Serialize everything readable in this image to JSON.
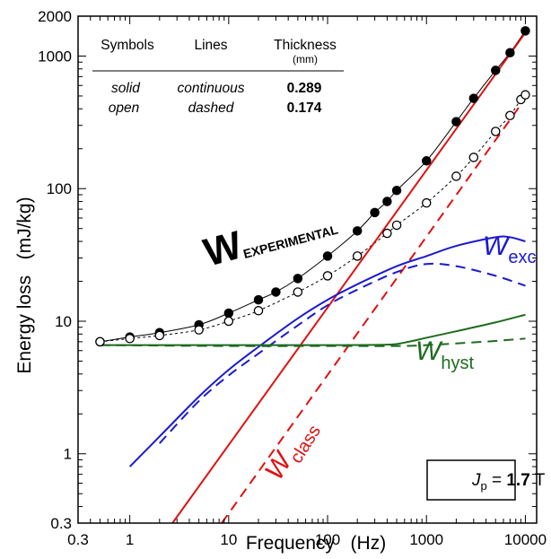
{
  "chart_data": {
    "type": "line",
    "xlabel": "Frequency   (Hz)",
    "ylabel": "Energy loss   (mJ/kg)",
    "xscale": "log",
    "yscale": "log",
    "xlim": [
      0.3,
      13000
    ],
    "ylim": [
      0.3,
      2000
    ],
    "xticks": [
      {
        "v": 0.3,
        "label": "0.3"
      },
      {
        "v": 1,
        "label": "1"
      },
      {
        "v": 10,
        "label": "10"
      },
      {
        "v": 100,
        "label": "100"
      },
      {
        "v": 1000,
        "label": "1000"
      },
      {
        "v": 10000,
        "label": "10000"
      }
    ],
    "yticks": [
      {
        "v": 0.3,
        "label": "0.3"
      },
      {
        "v": 1,
        "label": "1"
      },
      {
        "v": 10,
        "label": "10"
      },
      {
        "v": 100,
        "label": "100"
      },
      {
        "v": 1000,
        "label": "1000"
      },
      {
        "v": 2000,
        "label": "2000"
      }
    ],
    "grid": false,
    "table": {
      "headers": [
        "Symbols",
        "Lines",
        "Thickness"
      ],
      "unit": "(mm)",
      "rows": [
        {
          "symbols": "solid",
          "lines": "continuous",
          "thickness": "0.289"
        },
        {
          "symbols": "open",
          "lines": "dashed",
          "thickness": "0.174"
        }
      ]
    },
    "annotations": {
      "w_exp": {
        "main": "W",
        "sub": "EXPERIMENTAL"
      },
      "w_exc": {
        "main": "W",
        "sub": "exc"
      },
      "w_hyst": {
        "main": "W",
        "sub": "hyst"
      },
      "w_class": {
        "main": "W",
        "sub": "class"
      },
      "jp": {
        "sym": "J",
        "sub": "p",
        "eq": " = ",
        "val": "1.7",
        "unit": " T"
      }
    },
    "colors": {
      "exp": "#000000",
      "exc": "#1a1ad0",
      "hyst": "#1e6b1e",
      "class": "#e01010"
    },
    "series": [
      {
        "key": "exp_solid",
        "color": "#000000",
        "dash": false,
        "marker": "filled",
        "points": [
          [
            0.5,
            7.0
          ],
          [
            1,
            7.6
          ],
          [
            2,
            8.2
          ],
          [
            5,
            9.4
          ],
          [
            10,
            11.5
          ],
          [
            20,
            14.5
          ],
          [
            30,
            16.6
          ],
          [
            50,
            21
          ],
          [
            100,
            31
          ],
          [
            200,
            48
          ],
          [
            300,
            66
          ],
          [
            400,
            80
          ],
          [
            500,
            97
          ],
          [
            1000,
            162
          ],
          [
            2000,
            320
          ],
          [
            3000,
            480
          ],
          [
            5000,
            780
          ],
          [
            7000,
            1060
          ],
          [
            10000,
            1550
          ]
        ]
      },
      {
        "key": "exp_dashed",
        "color": "#000000",
        "dash": true,
        "marker": "open",
        "points": [
          [
            0.5,
            7.0
          ],
          [
            1,
            7.4
          ],
          [
            2,
            7.8
          ],
          [
            5,
            8.6
          ],
          [
            10,
            10
          ],
          [
            20,
            12
          ],
          [
            50,
            16.6
          ],
          [
            100,
            22
          ],
          [
            200,
            31
          ],
          [
            400,
            46
          ],
          [
            500,
            53
          ],
          [
            1000,
            78
          ],
          [
            2000,
            124
          ],
          [
            3000,
            172
          ],
          [
            5000,
            270
          ],
          [
            7000,
            356
          ],
          [
            9000,
            470
          ],
          [
            10000,
            510
          ]
        ]
      },
      {
        "key": "class_solid",
        "color": "#e01010",
        "dash": false,
        "marker": "none",
        "points": [
          [
            2.7,
            0.3
          ],
          [
            10000,
            1500
          ]
        ]
      },
      {
        "key": "class_dashed",
        "color": "#e01010",
        "dash": true,
        "marker": "none",
        "points": [
          [
            8.5,
            0.3
          ],
          [
            10000,
            480
          ]
        ]
      },
      {
        "key": "exc_solid",
        "color": "#1a1ad0",
        "dash": false,
        "marker": "none",
        "points": [
          [
            1,
            0.8
          ],
          [
            2,
            1.35
          ],
          [
            5,
            2.7
          ],
          [
            10,
            4.3
          ],
          [
            20,
            6.4
          ],
          [
            50,
            10.5
          ],
          [
            100,
            14.5
          ],
          [
            200,
            19
          ],
          [
            500,
            26
          ],
          [
            1000,
            31
          ],
          [
            2000,
            37
          ],
          [
            5000,
            43
          ],
          [
            7000,
            43
          ],
          [
            10000,
            40
          ]
        ]
      },
      {
        "key": "exc_dashed",
        "color": "#1a1ad0",
        "dash": true,
        "marker": "none",
        "points": [
          [
            2,
            1.2
          ],
          [
            5,
            2.5
          ],
          [
            10,
            3.9
          ],
          [
            20,
            5.7
          ],
          [
            50,
            9.3
          ],
          [
            100,
            13.2
          ],
          [
            200,
            17.3
          ],
          [
            500,
            23.5
          ],
          [
            1000,
            27
          ],
          [
            2000,
            26
          ],
          [
            5000,
            22
          ],
          [
            10000,
            18.5
          ]
        ]
      },
      {
        "key": "hyst_solid",
        "color": "#1e6b1e",
        "dash": false,
        "marker": "none",
        "points": [
          [
            0.5,
            6.6
          ],
          [
            10,
            6.6
          ],
          [
            100,
            6.6
          ],
          [
            400,
            6.65
          ],
          [
            600,
            6.9
          ],
          [
            1000,
            7.5
          ],
          [
            2000,
            8.4
          ],
          [
            5000,
            9.8
          ],
          [
            10000,
            11.2
          ]
        ]
      },
      {
        "key": "hyst_dashed",
        "color": "#1e6b1e",
        "dash": true,
        "marker": "none",
        "points": [
          [
            0.5,
            6.6
          ],
          [
            10,
            6.5
          ],
          [
            100,
            6.5
          ],
          [
            500,
            6.5
          ],
          [
            1000,
            6.6
          ],
          [
            2000,
            6.8
          ],
          [
            5000,
            7.1
          ],
          [
            10000,
            7.4
          ]
        ]
      }
    ]
  }
}
